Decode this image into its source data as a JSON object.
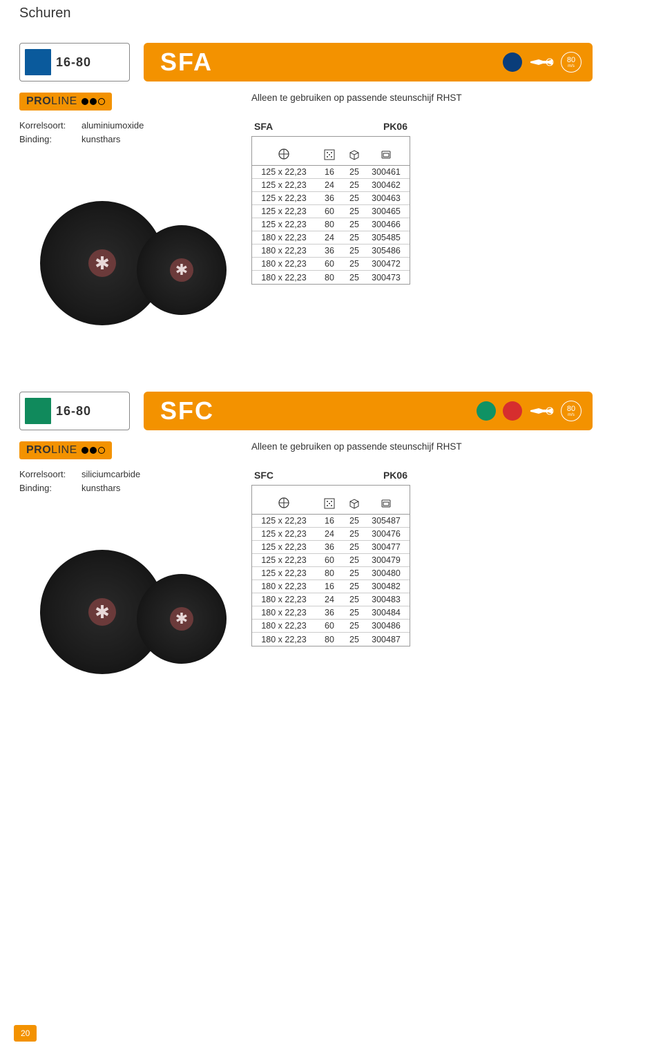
{
  "page_title": "Schuren",
  "page_number": "20",
  "colors": {
    "accent": "#f39200",
    "blue_dot": "#0a3d7a",
    "green_dot": "#0f9264",
    "red_dot": "#d62e2e",
    "range_icon_bg_1": "#0a5a9c",
    "range_icon_bg_2": "#108a5c",
    "text": "#333333",
    "white": "#ffffff",
    "border": "#999999"
  },
  "sections": [
    {
      "range": "16-80",
      "code": "SFA",
      "speed": "80",
      "speed_unit": "m/s",
      "header_dots": [
        "blue"
      ],
      "proline": "PROLINE",
      "rating": 2,
      "specs": [
        {
          "label": "Korrelsoort:",
          "value": "aluminiumoxide"
        },
        {
          "label": "Binding:",
          "value": "kunsthars"
        }
      ],
      "note": "Alleen te gebruiken op passende steunschijf RHST",
      "table_code": "SFA",
      "table_pk": "PK06",
      "rows": [
        {
          "size": "125 x 22,23",
          "grit": "16",
          "qty": "25",
          "art": "300461"
        },
        {
          "size": "125 x 22,23",
          "grit": "24",
          "qty": "25",
          "art": "300462"
        },
        {
          "size": "125 x 22,23",
          "grit": "36",
          "qty": "25",
          "art": "300463"
        },
        {
          "size": "125 x 22,23",
          "grit": "60",
          "qty": "25",
          "art": "300465"
        },
        {
          "size": "125 x 22,23",
          "grit": "80",
          "qty": "25",
          "art": "300466"
        },
        {
          "size": "180 x 22,23",
          "grit": "24",
          "qty": "25",
          "art": "305485"
        },
        {
          "size": "180 x 22,23",
          "grit": "36",
          "qty": "25",
          "art": "305486"
        },
        {
          "size": "180 x 22,23",
          "grit": "60",
          "qty": "25",
          "art": "300472"
        },
        {
          "size": "180 x 22,23",
          "grit": "80",
          "qty": "25",
          "art": "300473"
        }
      ]
    },
    {
      "range": "16-80",
      "code": "SFC",
      "speed": "80",
      "speed_unit": "m/s",
      "header_dots": [
        "green",
        "red"
      ],
      "proline": "PROLINE",
      "rating": 2,
      "specs": [
        {
          "label": "Korrelsoort:",
          "value": "siliciumcarbide"
        },
        {
          "label": "Binding:",
          "value": "kunsthars"
        }
      ],
      "note": "Alleen te gebruiken op passende steunschijf RHST",
      "table_code": "SFC",
      "table_pk": "PK06",
      "rows": [
        {
          "size": "125 x 22,23",
          "grit": "16",
          "qty": "25",
          "art": "305487"
        },
        {
          "size": "125 x 22,23",
          "grit": "24",
          "qty": "25",
          "art": "300476"
        },
        {
          "size": "125 x 22,23",
          "grit": "36",
          "qty": "25",
          "art": "300477"
        },
        {
          "size": "125 x 22,23",
          "grit": "60",
          "qty": "25",
          "art": "300479"
        },
        {
          "size": "125 x 22,23",
          "grit": "80",
          "qty": "25",
          "art": "300480"
        },
        {
          "size": "180 x 22,23",
          "grit": "16",
          "qty": "25",
          "art": "300482"
        },
        {
          "size": "180 x 22,23",
          "grit": "24",
          "qty": "25",
          "art": "300483"
        },
        {
          "size": "180 x 22,23",
          "grit": "36",
          "qty": "25",
          "art": "300484"
        },
        {
          "size": "180 x 22,23",
          "grit": "60",
          "qty": "25",
          "art": "300486"
        },
        {
          "size": "180 x 22,23",
          "grit": "80",
          "qty": "25",
          "art": "300487"
        }
      ]
    }
  ]
}
